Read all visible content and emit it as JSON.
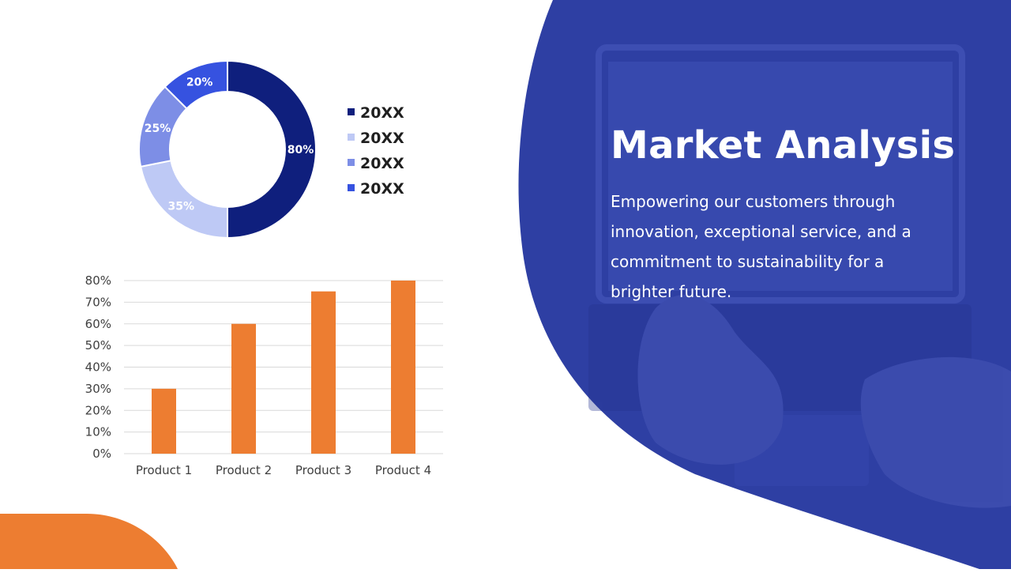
{
  "slide": {
    "title": "Market Analysis",
    "description": "Empowering our customers through innovation, exceptional service, and a commitment to sustainability for a brighter future."
  },
  "colors": {
    "panel_blue": "#2e3fa3",
    "navy": "#0f1f7d",
    "light_blue": "#bec9f5",
    "mid_blue": "#7d8ee6",
    "bright_blue": "#3652e0",
    "orange": "#ed7d31",
    "grid": "#d9d9d9",
    "text_dark": "#1f1f1f",
    "axis_text": "#404040"
  },
  "chart_data": [
    {
      "type": "pie",
      "style": "donut",
      "values": [
        80,
        35,
        25,
        20
      ],
      "labels": [
        "80%",
        "35%",
        "25%",
        "20%"
      ],
      "legend": [
        "20XX",
        "20XX",
        "20XX",
        "20XX"
      ],
      "colors": [
        "#0f1f7d",
        "#bec9f5",
        "#7d8ee6",
        "#3652e0"
      ],
      "legend_position": "right"
    },
    {
      "type": "bar",
      "categories": [
        "Product 1",
        "Product 2",
        "Product 3",
        "Product 4"
      ],
      "values": [
        30,
        60,
        75,
        80
      ],
      "ylim": [
        0,
        80
      ],
      "yticks": [
        "0%",
        "10%",
        "20%",
        "30%",
        "40%",
        "50%",
        "60%",
        "70%",
        "80%"
      ],
      "grid": true,
      "color": "#ed7d31"
    }
  ]
}
